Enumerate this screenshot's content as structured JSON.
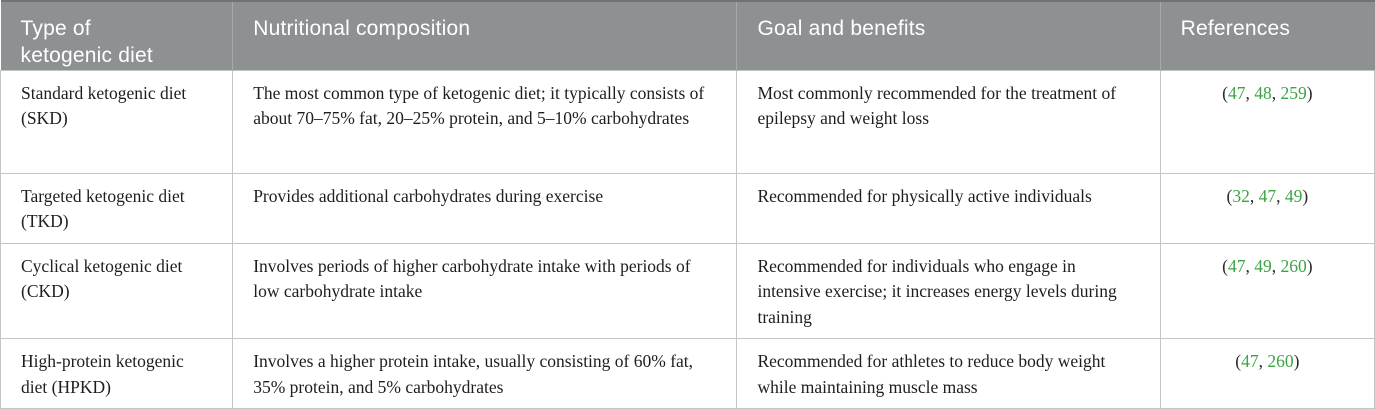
{
  "table": {
    "columns": [
      {
        "label": "Type of ketogenic diet"
      },
      {
        "label": "Nutritional composition"
      },
      {
        "label": "Goal and benefits"
      },
      {
        "label": "References"
      }
    ],
    "rows": [
      {
        "type": "Standard ketogenic diet (SKD)",
        "composition": "The most common type of ketogenic diet; it typically consists of about 70–75% fat, 20–25% protein, and 5–10% carbohydrates",
        "goal": "Most commonly recommended for the treatment of epilepsy and weight loss",
        "references": [
          "47",
          "48",
          "259"
        ]
      },
      {
        "type": "Targeted ketogenic diet (TKD)",
        "composition": "Provides additional carbohydrates during exercise",
        "goal": "Recommended for physically active individuals",
        "references": [
          "32",
          "47",
          "49"
        ]
      },
      {
        "type": "Cyclical ketogenic diet (CKD)",
        "composition": "Involves periods of higher carbohydrate intake with periods of low carbohydrate intake",
        "goal": "Recommended for individuals who engage in intensive exercise; it increases energy levels during training",
        "references": [
          "47",
          "49",
          "260"
        ]
      },
      {
        "type": "High-protein ketogenic diet (HPKD)",
        "composition": "Involves a higher protein intake, usually consisting of 60% fat, 35% protein, and 5% carbohydrates",
        "goal": "Recommended for athletes to reduce body weight while maintaining muscle mass",
        "references": [
          "47",
          "260"
        ]
      }
    ],
    "ref_format": {
      "open": "(",
      "separator": ", ",
      "close": ")"
    }
  },
  "colors": {
    "header_bg": "#8d9192",
    "header_text": "#ffffff",
    "header_divider": "#a7a9aa",
    "header_top_edge": "#6f7374",
    "body_border": "#c3c4c4",
    "body_text": "#1e1e1e",
    "reference_green": "#3ba543"
  }
}
